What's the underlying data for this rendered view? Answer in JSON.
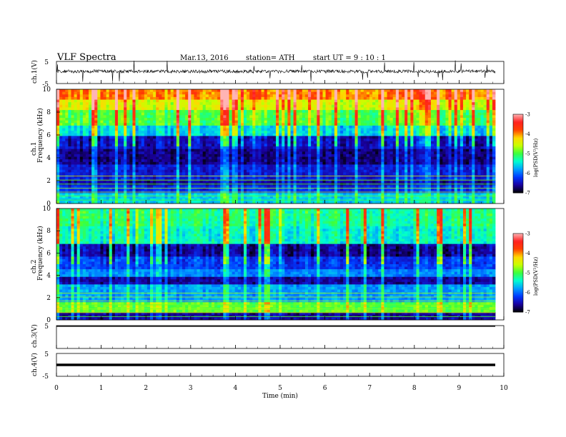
{
  "header": {
    "title": "VLF  Spectra",
    "date": "Mar.13, 2016",
    "station": "station= ATH",
    "start": "start  UT  =   9  : 10 : 1"
  },
  "colors": {
    "colormap": [
      "#000000",
      "#1a00a0",
      "#0038ff",
      "#00a0ff",
      "#00ffd0",
      "#3cff3c",
      "#c8ff00",
      "#ffd800",
      "#ff4000",
      "#ff2020",
      "#ffb4b4"
    ],
    "trace": "#000000",
    "axis": "#000000"
  },
  "chart_data": [
    {
      "type": "line",
      "ylabel": "ch.1(V)",
      "ylim": [
        -5,
        5
      ],
      "yticks": [
        "5",
        "-5"
      ],
      "xlim": [
        0,
        10
      ],
      "description_values": {
        "baseline_V": 0.5,
        "spread_V": 1.5
      }
    },
    {
      "type": "heatmap",
      "ylabel": "ch.1",
      "ylabel2": "Frequency  (kHz)",
      "ylim": [
        0,
        10
      ],
      "yticks": [
        "10",
        "8",
        "6",
        "4",
        "2",
        "0"
      ],
      "xlim": [
        0,
        10
      ],
      "colorbar": {
        "label": "log(PSD(V²/Hz)",
        "range": [
          -7,
          -3
        ],
        "ticks": [
          "-3",
          "-4",
          "-5",
          "-6",
          "-7"
        ]
      },
      "bands": [
        {
          "from": 0,
          "to": 0.8,
          "level": -5.6
        },
        {
          "from": 0.8,
          "to": 1.6,
          "level": -6.3
        },
        {
          "from": 1.6,
          "to": 2.0,
          "level": -6.6
        },
        {
          "from": 2.0,
          "to": 3.4,
          "level": -6.4
        },
        {
          "from": 3.4,
          "to": 4.8,
          "level": -6.7
        },
        {
          "from": 4.8,
          "to": 5.8,
          "level": -6.5
        },
        {
          "from": 5.8,
          "to": 6.8,
          "level": -5.6
        },
        {
          "from": 6.8,
          "to": 8.2,
          "level": -5.0
        },
        {
          "from": 8.2,
          "to": 9.2,
          "level": -4.5
        },
        {
          "from": 9.2,
          "to": 10,
          "level": -4.0
        }
      ]
    },
    {
      "type": "heatmap",
      "ylabel": "ch.2",
      "ylabel2": "Frequency  (kHz)",
      "ylim": [
        0,
        10
      ],
      "yticks": [
        "10",
        "8",
        "6",
        "4",
        "2",
        "0"
      ],
      "xlim": [
        0,
        10
      ],
      "colorbar": {
        "label": "log(PSD(V²/Hz)",
        "range": [
          -7,
          -3
        ],
        "ticks": [
          "-3",
          "-4",
          "-5",
          "-6",
          "-7"
        ]
      },
      "bands": [
        {
          "from": 0,
          "to": 0.6,
          "level": -6.6
        },
        {
          "from": 0.6,
          "to": 1.6,
          "level": -4.9
        },
        {
          "from": 1.6,
          "to": 3.2,
          "level": -5.8
        },
        {
          "from": 3.2,
          "to": 3.8,
          "level": -6.6
        },
        {
          "from": 3.8,
          "to": 4.6,
          "level": -5.9
        },
        {
          "from": 4.6,
          "to": 5.6,
          "level": -6.2
        },
        {
          "from": 5.6,
          "to": 6.8,
          "level": -6.6
        },
        {
          "from": 6.8,
          "to": 8.4,
          "level": -5.4
        },
        {
          "from": 8.4,
          "to": 10,
          "level": -5.2
        }
      ]
    },
    {
      "type": "line",
      "ylabel": "ch.3(V)",
      "ylim": [
        -5,
        5
      ],
      "yticks": [
        "5"
      ],
      "xlim": [
        0,
        10
      ],
      "description_values": {
        "baseline_V": 5
      }
    },
    {
      "type": "line",
      "ylabel": "ch.4(V)",
      "ylim": [
        -5,
        5
      ],
      "yticks": [
        "5",
        "-5"
      ],
      "xlim": [
        0,
        10
      ],
      "xlabel": "Time  (min)",
      "xticks": [
        "0",
        "1",
        "2",
        "3",
        "4",
        "5",
        "6",
        "7",
        "8",
        "9",
        "10"
      ],
      "description_values": {
        "baseline_V": 0
      }
    }
  ]
}
